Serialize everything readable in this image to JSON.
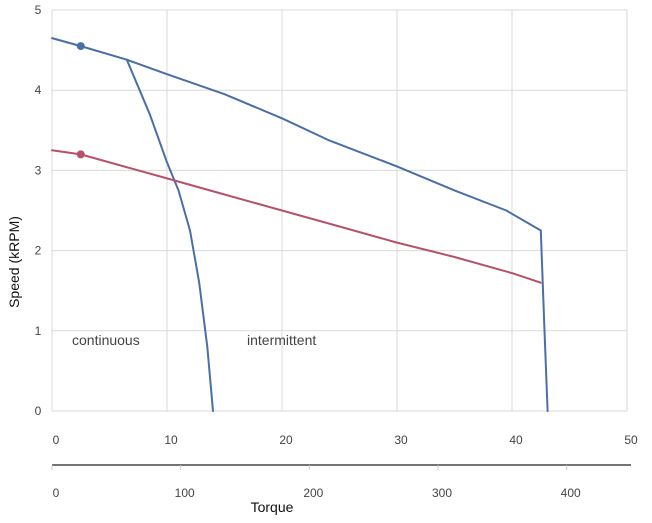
{
  "chart_data": {
    "type": "line",
    "title": "",
    "ylabel": "Speed (kRPM)",
    "xlabel": "Torque",
    "grid": true,
    "ylim": [
      0,
      5
    ],
    "xlim": [
      0,
      50
    ],
    "xlim_secondary": [
      0,
      450
    ],
    "y_ticks": [
      "0",
      "1",
      "2",
      "3",
      "4",
      "5"
    ],
    "x_ticks": [
      "0",
      "10",
      "20",
      "30",
      "40",
      "50"
    ],
    "x2_ticks": [
      "0",
      "100",
      "200",
      "300",
      "400"
    ],
    "annotations": [
      "continuous",
      "intermittent"
    ],
    "colors": {
      "blue": "#4a6fa5",
      "red": "#b5526a",
      "grid": "#d9d9d9"
    },
    "series": [
      {
        "color": "#4a6fa5",
        "x": [
          0,
          2.5,
          6.5,
          10,
          15,
          20,
          24,
          30,
          35,
          39.5,
          42.5,
          42.8,
          43.1
        ],
        "y": [
          4.65,
          4.55,
          4.38,
          4.2,
          3.95,
          3.65,
          3.38,
          3.05,
          2.75,
          2.5,
          2.25,
          1.1,
          0
        ]
      },
      {
        "color": "#4a6fa5",
        "x": [
          6.5,
          8.5,
          10,
          11,
          12,
          12.8,
          13.5,
          14
        ],
        "y": [
          4.38,
          3.7,
          3.1,
          2.75,
          2.25,
          1.6,
          0.8,
          0
        ]
      },
      {
        "color": "#b5526a",
        "x": [
          0,
          2.5,
          5,
          10,
          15,
          20,
          25,
          30,
          35,
          40,
          42.5
        ],
        "y": [
          3.25,
          3.2,
          3.1,
          2.9,
          2.7,
          2.5,
          2.3,
          2.1,
          1.92,
          1.72,
          1.6
        ]
      }
    ],
    "markers": [
      {
        "x": 2.5,
        "y": 4.55,
        "color": "#4a6fa5"
      },
      {
        "x": 2.5,
        "y": 3.2,
        "color": "#b5526a"
      }
    ]
  }
}
